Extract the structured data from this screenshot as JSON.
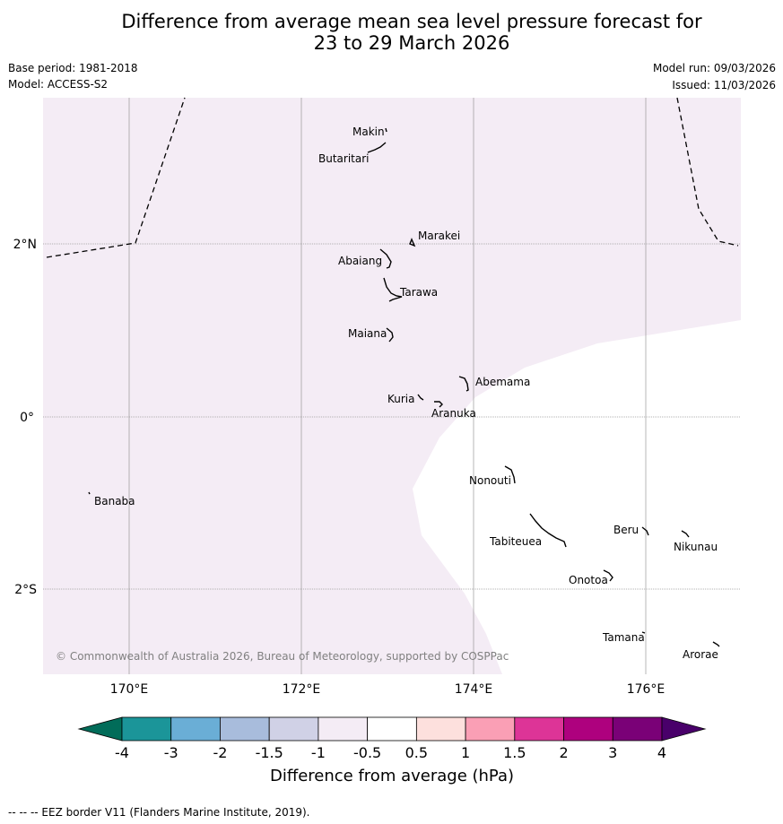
{
  "title": {
    "line1": "Difference from average mean sea level pressure forecast for",
    "line2": "23 to 29 March 2026"
  },
  "meta": {
    "base_period": "Base period: 1981-2018",
    "model": "Model: ACCESS-S2",
    "model_run": "Model run: 09/03/2026",
    "issued": "Issued: 11/03/2026"
  },
  "map": {
    "colors": {
      "land_area_fill": "#f4ecf5",
      "neutral_fill": "#ffffff",
      "eez_line": "#000000",
      "gridline": "#999999"
    },
    "lon_labels": [
      "170°E",
      "172°E",
      "174°E",
      "176°E"
    ],
    "lat_labels": [
      "2°N",
      "0°",
      "2°S"
    ],
    "places": [
      {
        "name": "Makin"
      },
      {
        "name": "Butaritari"
      },
      {
        "name": "Marakei"
      },
      {
        "name": "Abaiang"
      },
      {
        "name": "Tarawa"
      },
      {
        "name": "Maiana"
      },
      {
        "name": "Abemama"
      },
      {
        "name": "Kuria"
      },
      {
        "name": "Aranuka"
      },
      {
        "name": "Nonouti"
      },
      {
        "name": "Banaba"
      },
      {
        "name": "Beru"
      },
      {
        "name": "Tabiteuea"
      },
      {
        "name": "Nikunau"
      },
      {
        "name": "Onotoa"
      },
      {
        "name": "Tamana"
      },
      {
        "name": "Arorae"
      }
    ],
    "copyright": "© Commonwealth of Australia 2026, Bureau of Meteorology, supported by COSPPac"
  },
  "colorbar": {
    "label": "Difference from average (hPa)",
    "ticks": [
      "-4",
      "-3",
      "-2",
      "-1.5",
      "-1",
      "-0.5",
      "0.5",
      "1",
      "1.5",
      "2",
      "3",
      "4"
    ],
    "colors": [
      "#1b9599",
      "#6aaed6",
      "#a8bcdc",
      "#d0d1e6",
      "#f4ecf5",
      "#ffffff",
      "#fde0dd",
      "#fa9fb5",
      "#dd3497",
      "#ae017e",
      "#7a0177"
    ],
    "low_extend_color": "#016c59",
    "high_extend_color": "#49006a"
  },
  "footer": "--  --  -- EEZ border V11 (Flanders Marine Institute, 2019)."
}
